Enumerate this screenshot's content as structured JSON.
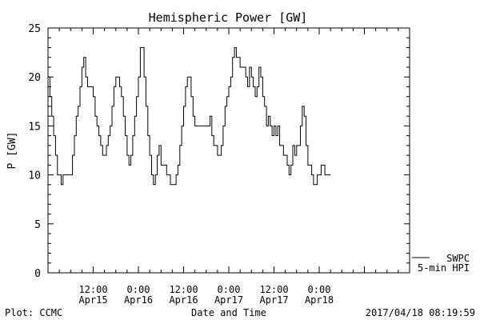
{
  "chart_data": {
    "type": "line",
    "title": "Hemispheric Power [GW]",
    "xlabel": "Date and Time",
    "ylabel": "P [GW]",
    "ylim": [
      0,
      25
    ],
    "y_ticks": [
      0,
      5,
      10,
      15,
      20,
      25
    ],
    "x_axis_hours": [
      0,
      96
    ],
    "x_ticks": [
      {
        "t": 12,
        "time": "12:00",
        "date": "Apr15"
      },
      {
        "t": 24,
        "time": "0:00",
        "date": "Apr16"
      },
      {
        "t": 36,
        "time": "12:00",
        "date": "Apr16"
      },
      {
        "t": 48,
        "time": "0:00",
        "date": "Apr17"
      },
      {
        "t": 60,
        "time": "12:00",
        "date": "Apr17"
      },
      {
        "t": 72,
        "time": "0:00",
        "date": "Apr18"
      }
    ],
    "grid": false,
    "legend_placement": "bottom-right",
    "series": [
      {
        "name": "SWPC\n5-min HPI",
        "color": "#000000",
        "points": [
          [
            0.0,
            20
          ],
          [
            0.5,
            18
          ],
          [
            1.0,
            16
          ],
          [
            1.5,
            14
          ],
          [
            2.0,
            12
          ],
          [
            2.5,
            10
          ],
          [
            3.0,
            10
          ],
          [
            3.5,
            9
          ],
          [
            4.0,
            10
          ],
          [
            4.5,
            10
          ],
          [
            5.0,
            10
          ],
          [
            5.5,
            10
          ],
          [
            6.0,
            10
          ],
          [
            6.5,
            12
          ],
          [
            7.0,
            14
          ],
          [
            7.5,
            16
          ],
          [
            8.0,
            17
          ],
          [
            8.5,
            19
          ],
          [
            9.0,
            21
          ],
          [
            9.5,
            22
          ],
          [
            10.0,
            20
          ],
          [
            10.5,
            19
          ],
          [
            11.0,
            19
          ],
          [
            11.5,
            19
          ],
          [
            12.0,
            18
          ],
          [
            12.5,
            16
          ],
          [
            13.0,
            15
          ],
          [
            13.5,
            14
          ],
          [
            14.0,
            13
          ],
          [
            14.5,
            12
          ],
          [
            15.0,
            12
          ],
          [
            15.5,
            13
          ],
          [
            16.0,
            14
          ],
          [
            16.5,
            15
          ],
          [
            17.0,
            17
          ],
          [
            17.5,
            19
          ],
          [
            18.0,
            20
          ],
          [
            18.5,
            20
          ],
          [
            19.0,
            19
          ],
          [
            19.5,
            18
          ],
          [
            20.0,
            16
          ],
          [
            20.5,
            14
          ],
          [
            21.0,
            12
          ],
          [
            21.5,
            11
          ],
          [
            22.0,
            12
          ],
          [
            22.5,
            14
          ],
          [
            23.0,
            16
          ],
          [
            23.5,
            18
          ],
          [
            24.0,
            20
          ],
          [
            24.5,
            23
          ],
          [
            25.0,
            23
          ],
          [
            25.5,
            20
          ],
          [
            26.0,
            17
          ],
          [
            26.5,
            14
          ],
          [
            27.0,
            12
          ],
          [
            27.5,
            10
          ],
          [
            28.0,
            9
          ],
          [
            28.5,
            10
          ],
          [
            29.0,
            12
          ],
          [
            29.5,
            13
          ],
          [
            30.0,
            11
          ],
          [
            30.5,
            11
          ],
          [
            31.0,
            11
          ],
          [
            31.5,
            10
          ],
          [
            32.0,
            10
          ],
          [
            32.5,
            9
          ],
          [
            33.0,
            9
          ],
          [
            33.5,
            9
          ],
          [
            34.0,
            10
          ],
          [
            34.5,
            11
          ],
          [
            35.0,
            13
          ],
          [
            35.5,
            15
          ],
          [
            36.0,
            17
          ],
          [
            36.5,
            19
          ],
          [
            37.0,
            20
          ],
          [
            37.5,
            20
          ],
          [
            38.0,
            18
          ],
          [
            38.5,
            16
          ],
          [
            39.0,
            15
          ],
          [
            39.5,
            15
          ],
          [
            40.0,
            15
          ],
          [
            40.5,
            15
          ],
          [
            41.0,
            15
          ],
          [
            41.5,
            15
          ],
          [
            42.0,
            15
          ],
          [
            42.5,
            15
          ],
          [
            43.0,
            16
          ],
          [
            43.5,
            14
          ],
          [
            44.0,
            13
          ],
          [
            44.5,
            13
          ],
          [
            45.0,
            12
          ],
          [
            45.5,
            12
          ],
          [
            46.0,
            13
          ],
          [
            46.5,
            15
          ],
          [
            47.0,
            17
          ],
          [
            47.5,
            18
          ],
          [
            48.0,
            19
          ],
          [
            48.5,
            20
          ],
          [
            49.0,
            22
          ],
          [
            49.5,
            23
          ],
          [
            50.0,
            22
          ],
          [
            50.5,
            22
          ],
          [
            51.0,
            21
          ],
          [
            51.5,
            21
          ],
          [
            52.0,
            21
          ],
          [
            52.5,
            20
          ],
          [
            53.0,
            19
          ],
          [
            53.5,
            21
          ],
          [
            54.0,
            20
          ],
          [
            54.5,
            19
          ],
          [
            55.0,
            18
          ],
          [
            55.5,
            19
          ],
          [
            56.0,
            21
          ],
          [
            56.5,
            20
          ],
          [
            57.0,
            18
          ],
          [
            57.5,
            17
          ],
          [
            58.0,
            15
          ],
          [
            58.5,
            16
          ],
          [
            59.0,
            15
          ],
          [
            59.5,
            14
          ],
          [
            60.0,
            15
          ],
          [
            60.5,
            14
          ],
          [
            61.0,
            15
          ],
          [
            61.5,
            13
          ],
          [
            62.0,
            13
          ],
          [
            62.5,
            12
          ],
          [
            63.0,
            12
          ],
          [
            63.5,
            11
          ],
          [
            64.0,
            10
          ],
          [
            64.5,
            11
          ],
          [
            65.0,
            13
          ],
          [
            65.5,
            12
          ],
          [
            66.0,
            13
          ],
          [
            66.5,
            13
          ],
          [
            67.0,
            15
          ],
          [
            67.5,
            17
          ],
          [
            68.0,
            16
          ],
          [
            68.5,
            13
          ],
          [
            69.0,
            11
          ],
          [
            69.5,
            11
          ],
          [
            70.0,
            10
          ],
          [
            70.5,
            9
          ],
          [
            71.0,
            9
          ],
          [
            71.5,
            10
          ],
          [
            72.0,
            10
          ],
          [
            72.5,
            11
          ],
          [
            73.0,
            11
          ],
          [
            73.5,
            10
          ],
          [
            74.0,
            10
          ],
          [
            74.5,
            10
          ]
        ]
      }
    ]
  },
  "footer": {
    "left": "Plot: CCMC",
    "right": "2017/04/18 08:19:59"
  }
}
